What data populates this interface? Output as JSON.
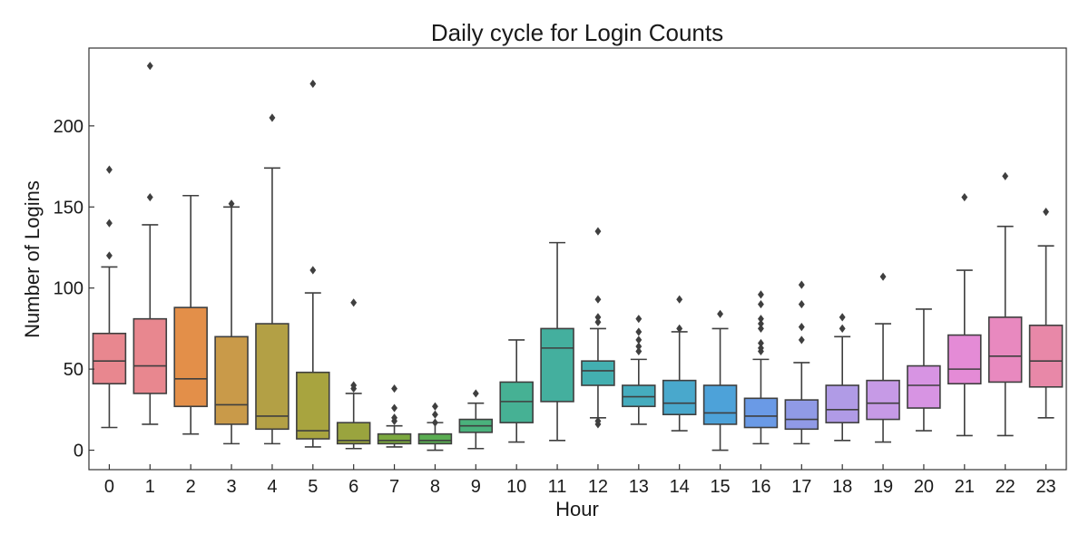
{
  "chart_data": {
    "type": "box",
    "title": "Daily cycle for Login Counts",
    "xlabel": "Hour",
    "ylabel": "Number of Logins",
    "ylim": [
      -12,
      248
    ],
    "yticks": [
      0,
      50,
      100,
      150,
      200
    ],
    "grid": false,
    "legend": "none",
    "categories": [
      "0",
      "1",
      "2",
      "3",
      "4",
      "5",
      "6",
      "7",
      "8",
      "9",
      "10",
      "11",
      "12",
      "13",
      "14",
      "15",
      "16",
      "17",
      "18",
      "19",
      "20",
      "21",
      "22",
      "23"
    ],
    "colors": [
      "#e8878f",
      "#e8878f",
      "#e38f49",
      "#c99a49",
      "#b3a045",
      "#a8a43f",
      "#9aa43e",
      "#7ba83f",
      "#5aad52",
      "#4ab17c",
      "#46b194",
      "#44af9e",
      "#43afb0",
      "#45acbe",
      "#49a8cc",
      "#4da2d9",
      "#6a9ae6",
      "#909ae6",
      "#b09be6",
      "#c69ae6",
      "#d794e3",
      "#e48bd6",
      "#e889bf",
      "#e888a8"
    ],
    "boxes": [
      {
        "q1": 41,
        "median": 55,
        "q3": 72,
        "whislo": 14,
        "whishi": 113,
        "fliers": [
          120,
          140,
          173
        ]
      },
      {
        "q1": 35,
        "median": 52,
        "q3": 81,
        "whislo": 16,
        "whishi": 139,
        "fliers": [
          156,
          237
        ]
      },
      {
        "q1": 27,
        "median": 44,
        "q3": 88,
        "whislo": 10,
        "whishi": 157,
        "fliers": []
      },
      {
        "q1": 16,
        "median": 28,
        "q3": 70,
        "whislo": 4,
        "whishi": 150,
        "fliers": [
          152
        ]
      },
      {
        "q1": 13,
        "median": 21,
        "q3": 78,
        "whislo": 4,
        "whishi": 174,
        "fliers": [
          205
        ]
      },
      {
        "q1": 7,
        "median": 12,
        "q3": 48,
        "whislo": 2,
        "whishi": 97,
        "fliers": [
          111,
          226
        ]
      },
      {
        "q1": 4,
        "median": 6,
        "q3": 17,
        "whislo": 1,
        "whishi": 35,
        "fliers": [
          38,
          40,
          91
        ]
      },
      {
        "q1": 4,
        "median": 6,
        "q3": 10,
        "whislo": 2,
        "whishi": 15,
        "fliers": [
          18,
          20,
          26,
          38
        ]
      },
      {
        "q1": 4,
        "median": 6,
        "q3": 10,
        "whislo": 0,
        "whishi": 17,
        "fliers": [
          17,
          22,
          27
        ]
      },
      {
        "q1": 11,
        "median": 15,
        "q3": 19,
        "whislo": 1,
        "whishi": 29,
        "fliers": [
          35
        ]
      },
      {
        "q1": 17,
        "median": 30,
        "q3": 42,
        "whislo": 5,
        "whishi": 68,
        "fliers": []
      },
      {
        "q1": 30,
        "median": 63,
        "q3": 75,
        "whislo": 6,
        "whishi": 128,
        "fliers": []
      },
      {
        "q1": 40,
        "median": 49,
        "q3": 55,
        "whislo": 20,
        "whishi": 75,
        "fliers": [
          16,
          18,
          79,
          82,
          93,
          135
        ]
      },
      {
        "q1": 27,
        "median": 33,
        "q3": 40,
        "whislo": 16,
        "whishi": 56,
        "fliers": [
          61,
          64,
          68,
          73,
          81
        ]
      },
      {
        "q1": 22,
        "median": 29,
        "q3": 43,
        "whislo": 12,
        "whishi": 73,
        "fliers": [
          75,
          93
        ]
      },
      {
        "q1": 16,
        "median": 23,
        "q3": 40,
        "whislo": 0,
        "whishi": 75,
        "fliers": [
          84
        ]
      },
      {
        "q1": 14,
        "median": 21,
        "q3": 32,
        "whislo": 4,
        "whishi": 56,
        "fliers": [
          61,
          63,
          66,
          75,
          78,
          81,
          90,
          96
        ]
      },
      {
        "q1": 13,
        "median": 19,
        "q3": 31,
        "whislo": 4,
        "whishi": 54,
        "fliers": [
          68,
          76,
          90,
          102
        ]
      },
      {
        "q1": 17,
        "median": 25,
        "q3": 40,
        "whislo": 6,
        "whishi": 70,
        "fliers": [
          75,
          82
        ]
      },
      {
        "q1": 19,
        "median": 29,
        "q3": 43,
        "whislo": 5,
        "whishi": 78,
        "fliers": [
          107
        ]
      },
      {
        "q1": 26,
        "median": 40,
        "q3": 52,
        "whislo": 12,
        "whishi": 87,
        "fliers": []
      },
      {
        "q1": 41,
        "median": 50,
        "q3": 71,
        "whislo": 9,
        "whishi": 111,
        "fliers": [
          156
        ]
      },
      {
        "q1": 42,
        "median": 58,
        "q3": 82,
        "whislo": 9,
        "whishi": 138,
        "fliers": [
          169
        ]
      },
      {
        "q1": 39,
        "median": 55,
        "q3": 77,
        "whislo": 20,
        "whishi": 126,
        "fliers": [
          147
        ]
      }
    ]
  }
}
